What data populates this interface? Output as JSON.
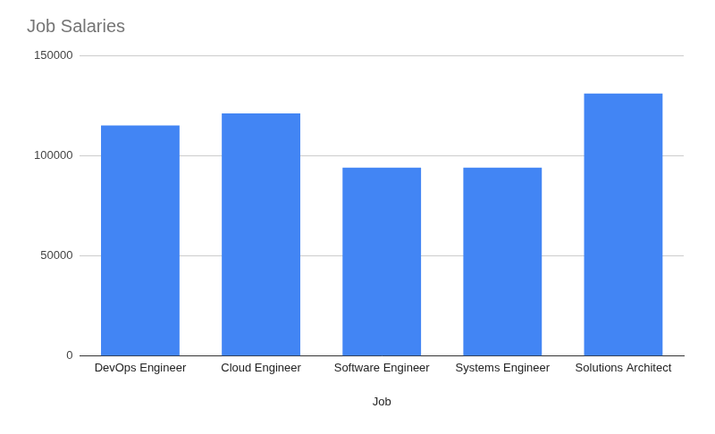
{
  "chart_data": {
    "type": "bar",
    "title": "Job Salaries",
    "xlabel": "Job",
    "categories": [
      "DevOps Engineer",
      "Cloud Engineer",
      "Software Engineer",
      "Systems Engineer",
      "Solutions Architect"
    ],
    "values": [
      115000,
      121000,
      94000,
      94000,
      131000
    ],
    "color": "#4285f4",
    "ylim": [
      0,
      150000
    ],
    "yticks": [
      0,
      50000,
      100000,
      150000
    ],
    "grid": true
  }
}
